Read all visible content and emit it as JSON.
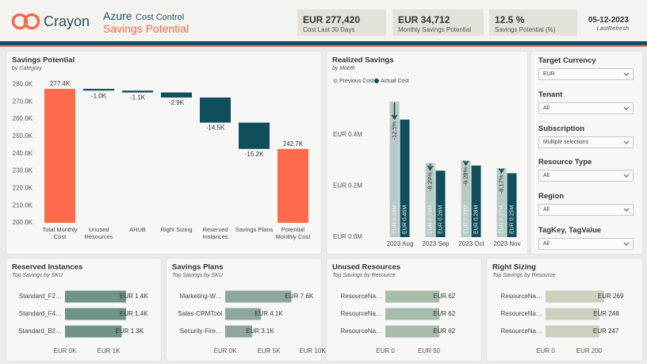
{
  "header": {
    "logo": "Crayon",
    "product": "Azure",
    "product_sub": "Cost Control",
    "page_title": "Savings Potential"
  },
  "kpis": [
    {
      "value": "EUR 277,420",
      "label": "Cost Last 30 Days"
    },
    {
      "value": "EUR 34,712",
      "label": "Monthly Savings Potential"
    },
    {
      "value": "12.5 %",
      "label": "Savings Potential (%)"
    }
  ],
  "refresh": {
    "date": "05-12-2023",
    "label": "LastRefresh"
  },
  "filters": [
    {
      "label": "Target Currency",
      "value": "EUR"
    },
    {
      "label": "Tenant",
      "value": "All"
    },
    {
      "label": "Subscription",
      "value": "Multiple selections"
    },
    {
      "label": "Resource Type",
      "value": "All"
    },
    {
      "label": "Region",
      "value": "All"
    },
    {
      "label": "TagKey, TagValue",
      "value": "All"
    }
  ],
  "chart_data": [
    {
      "type": "waterfall",
      "title": "Savings Potential",
      "subtitle": "by Category",
      "categories": [
        "Total Monthly Cost",
        "Unused Resources",
        "AHUB",
        "Right Sizing",
        "Reserved Instances",
        "Savings Plans",
        "Potential Monthly Cost"
      ],
      "values": [
        277.4,
        -1.0,
        -1.1,
        -2.9,
        -14.5,
        -15.2,
        242.7
      ],
      "value_labels": [
        "277.4K",
        "-1.0K",
        "-1.1K",
        "-2.9K",
        "-14.5K",
        "-15.2K",
        "242.7K"
      ],
      "measure": [
        "total",
        "relative",
        "relative",
        "relative",
        "relative",
        "relative",
        "total"
      ],
      "colors": {
        "total": "#fd6b4c",
        "decrease": "#0f4e5b"
      },
      "ylim": [
        200,
        282
      ],
      "yticks": [
        {
          "value": 200,
          "label": "200.0K"
        },
        {
          "value": 210,
          "label": "210.0K"
        },
        {
          "value": 220,
          "label": "220.0K"
        },
        {
          "value": 230,
          "label": "230.0K"
        },
        {
          "value": 240,
          "label": "240.0K"
        },
        {
          "value": 250,
          "label": "250.0K"
        },
        {
          "value": 260,
          "label": "260.0K"
        },
        {
          "value": 270,
          "label": "270.0K"
        },
        {
          "value": 280,
          "label": "280.0K"
        }
      ]
    },
    {
      "type": "grouped_bar",
      "title": "Realized Savings",
      "subtitle": "by Month",
      "categories": [
        "2023 Aug",
        "2023 Sep",
        "2023 Oct",
        "2023 Nov"
      ],
      "series": [
        {
          "name": "Previous Cost",
          "color": "#b8cac6",
          "values": [
            0.53,
            0.29,
            0.3,
            0.27
          ],
          "value_labels": [
            "EUR 0.53M",
            "EUR 0.29M",
            "EUR 0.30M",
            "EUR 0.27M"
          ]
        },
        {
          "name": "Actual Cost",
          "color": "#0f4e5a",
          "values": [
            0.46,
            0.26,
            0.28,
            0.25
          ],
          "value_labels": [
            "EUR 0.46M",
            "EUR 0.26M",
            "EUR 0.28M",
            "EUR 0.25M"
          ]
        }
      ],
      "changes": {
        "values": [
          -12.5,
          -8.29,
          -8.28,
          -8.17
        ],
        "value_labels": [
          "-12.5%",
          "-8.29%",
          "-8.28%",
          "-8.17%"
        ],
        "color": "#1f4a52"
      },
      "ylim": [
        0,
        0.54
      ],
      "yticks": [
        {
          "value": 0,
          "label": "EUR 0.0M"
        },
        {
          "value": 0.2,
          "label": "EUR 0.2M"
        },
        {
          "value": 0.4,
          "label": "EUR 0.4M"
        }
      ]
    },
    {
      "type": "hbar",
      "title": "Reserved Instances",
      "subtitle": "Top Savings by SKU",
      "categories": [
        "Standard_F2…",
        "Standard_F4…",
        "Standard_B2…"
      ],
      "values": [
        1.4,
        1.4,
        1.3
      ],
      "value_labels": [
        "EUR 1.4K",
        "EUR 1.4K",
        "EUR 1.3K"
      ],
      "color": "#6f9486",
      "xlim": [
        0,
        2
      ],
      "xticks": [
        {
          "value": 0,
          "label": "EUR 0K"
        },
        {
          "value": 1,
          "label": "EUR 1K"
        }
      ]
    },
    {
      "type": "hbar",
      "title": "Savings Plans",
      "subtitle": "Top Savings by SKU",
      "categories": [
        "Marketing-W…",
        "Sales-CRMTool",
        "Security-Fire…"
      ],
      "values": [
        7.6,
        4.1,
        3.1
      ],
      "value_labels": [
        "EUR 7.6K",
        "EUR 4.1K",
        "EUR 3.1K"
      ],
      "color": "#8ea69b",
      "xlim": [
        0,
        10
      ],
      "xticks": [
        {
          "value": 0,
          "label": "EUR 0K"
        },
        {
          "value": 5,
          "label": "EUR 5K"
        },
        {
          "value": 10,
          "label": "EUR 10K"
        }
      ]
    },
    {
      "type": "hbar",
      "title": "Unused Resources",
      "subtitle": "Top Savings by Resource",
      "categories": [
        "ResourceNa…",
        "ResourceNa…",
        "ResourceNa…"
      ],
      "values": [
        62,
        62,
        62
      ],
      "value_labels": [
        "EUR 62",
        "EUR 62",
        "EUR 62"
      ],
      "color": "#a8bcab",
      "xlim": [
        0,
        100
      ],
      "xticks": [
        {
          "value": 0,
          "label": "EUR 0"
        },
        {
          "value": 50,
          "label": "EUR 50"
        }
      ]
    },
    {
      "type": "hbar",
      "title": "Right Sizing",
      "subtitle": "Top Savings by Resource",
      "categories": [
        "ResourceNa…",
        "ResourceNa…",
        "ResourceNa…"
      ],
      "values": [
        269,
        248,
        247
      ],
      "value_labels": [
        "EUR 269",
        "EUR 248",
        "EUR 247"
      ],
      "color": "#cad1bf",
      "xlim": [
        0,
        400
      ],
      "xticks": [
        {
          "value": 0,
          "label": "EUR 0"
        },
        {
          "value": 200,
          "label": "EUR 200"
        }
      ]
    }
  ]
}
